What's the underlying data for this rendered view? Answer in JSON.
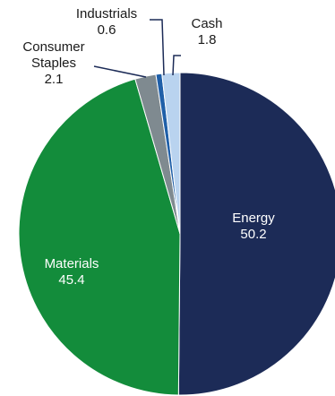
{
  "chart_data": {
    "type": "pie",
    "title": "",
    "start_angle_deg": 0,
    "direction": "clockwise",
    "slices": [
      {
        "label": "Energy",
        "value": 50.2,
        "value_text": "50.2",
        "color": "#1c2b57",
        "label_color": "#ffffff"
      },
      {
        "label": "Materials",
        "value": 45.4,
        "value_text": "45.4",
        "color": "#138c3b",
        "label_color": "#ffffff"
      },
      {
        "label": "Consumer Staples",
        "label_lines": [
          "Consumer",
          "Staples"
        ],
        "value": 2.1,
        "value_text": "2.1",
        "color": "#7f8a90",
        "label_color": "#1a1a1a"
      },
      {
        "label": "Industrials",
        "value": 0.6,
        "value_text": "0.6",
        "color": "#1f5fa8",
        "label_color": "#1a1a1a"
      },
      {
        "label": "Cash",
        "value": 1.8,
        "value_text": "1.8",
        "color": "#b9d3ef",
        "label_color": "#1a1a1a"
      }
    ]
  }
}
